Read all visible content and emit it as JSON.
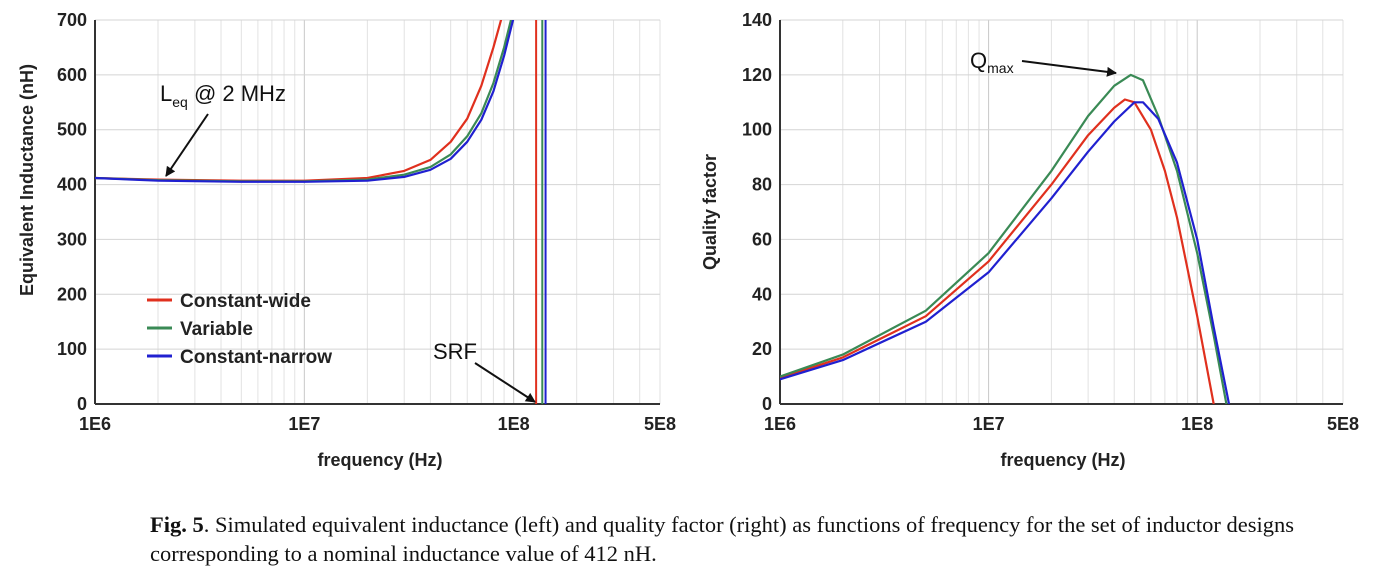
{
  "chart_data": [
    {
      "type": "line",
      "title": "",
      "xlabel": "frequency (Hz)",
      "ylabel": "Equivalent Inductance (nH)",
      "xscale": "log",
      "xlim": [
        1000000,
        500000000
      ],
      "ylim": [
        0,
        700
      ],
      "xticks": [
        1000000,
        10000000,
        100000000,
        500000000
      ],
      "xtick_labels": [
        "1E6",
        "1E7",
        "1E8",
        "5E8"
      ],
      "yticks": [
        0,
        100,
        200,
        300,
        400,
        500,
        600,
        700
      ],
      "ytick_labels": [
        "0",
        "100",
        "200",
        "300",
        "400",
        "500",
        "600",
        "700"
      ],
      "grid": true,
      "legend_position": "lower-left",
      "series": [
        {
          "name": "Constant-wide",
          "color": "#e0301e",
          "x": [
            1000000,
            2000000,
            5000000,
            10000000,
            20000000,
            30000000,
            40000000,
            50000000,
            60000000,
            70000000,
            80000000,
            90000000
          ],
          "y": [
            412,
            409,
            407,
            407,
            412,
            425,
            445,
            478,
            520,
            580,
            650,
            720
          ],
          "srf": 128000000
        },
        {
          "name": "Variable",
          "color": "#3a8a55",
          "x": [
            1000000,
            2000000,
            5000000,
            10000000,
            20000000,
            30000000,
            40000000,
            50000000,
            60000000,
            70000000,
            80000000,
            90000000,
            100000000
          ],
          "y": [
            412,
            408,
            406,
            406,
            409,
            418,
            432,
            455,
            488,
            530,
            585,
            650,
            720
          ],
          "srf": 137000000
        },
        {
          "name": "Constant-narrow",
          "color": "#2020d0",
          "x": [
            1000000,
            2000000,
            5000000,
            10000000,
            20000000,
            30000000,
            40000000,
            50000000,
            60000000,
            70000000,
            80000000,
            90000000,
            100000000
          ],
          "y": [
            412,
            407,
            405,
            405,
            407,
            414,
            427,
            447,
            478,
            518,
            570,
            635,
            705
          ],
          "srf": 142000000
        }
      ],
      "annotations": [
        {
          "text": "L",
          "subscript": "eq",
          "suffix": " @ 2 MHz",
          "target_x": 2000000,
          "target_y": 409
        },
        {
          "text": "SRF",
          "target_x": 128000000,
          "target_y": 0
        }
      ]
    },
    {
      "type": "line",
      "title": "",
      "xlabel": "frequency (Hz)",
      "ylabel": "Quality factor",
      "xscale": "log",
      "xlim": [
        1000000,
        500000000
      ],
      "ylim": [
        0,
        140
      ],
      "xticks": [
        1000000,
        10000000,
        100000000,
        500000000
      ],
      "xtick_labels": [
        "1E6",
        "1E7",
        "1E8",
        "5E8"
      ],
      "yticks": [
        0,
        20,
        40,
        60,
        80,
        100,
        120,
        140
      ],
      "ytick_labels": [
        "0",
        "20",
        "40",
        "60",
        "80",
        "100",
        "120",
        "140"
      ],
      "grid": true,
      "series": [
        {
          "name": "Constant-wide",
          "color": "#e0301e",
          "x": [
            1000000,
            2000000,
            5000000,
            10000000,
            20000000,
            30000000,
            40000000,
            45000000,
            50000000,
            60000000,
            70000000,
            80000000,
            100000000,
            120000000
          ],
          "y": [
            9.5,
            17,
            32,
            52,
            80,
            98,
            108,
            111,
            110,
            100,
            85,
            68,
            32,
            0
          ]
        },
        {
          "name": "Variable",
          "color": "#3a8a55",
          "x": [
            1000000,
            2000000,
            5000000,
            10000000,
            20000000,
            30000000,
            40000000,
            48000000,
            55000000,
            65000000,
            80000000,
            100000000,
            120000000,
            138000000
          ],
          "y": [
            10,
            18,
            34,
            55,
            85,
            105,
            116,
            120,
            118,
            105,
            85,
            55,
            25,
            0
          ]
        },
        {
          "name": "Constant-narrow",
          "color": "#2020d0",
          "x": [
            1000000,
            2000000,
            5000000,
            10000000,
            20000000,
            30000000,
            40000000,
            50000000,
            55000000,
            65000000,
            80000000,
            100000000,
            120000000,
            142000000
          ],
          "y": [
            9,
            16,
            30,
            48,
            75,
            92,
            103,
            110,
            110,
            104,
            88,
            60,
            28,
            0
          ]
        }
      ],
      "annotations": [
        {
          "text": "Q",
          "subscript": "max",
          "target_x": 48000000,
          "target_y": 120
        }
      ]
    }
  ],
  "caption": {
    "label": "Fig. 5",
    "text": ".  Simulated equivalent inductance (left) and quality factor (right) as functions of frequency for the set of inductor designs corresponding to a nominal inductance value of 412 nH."
  }
}
